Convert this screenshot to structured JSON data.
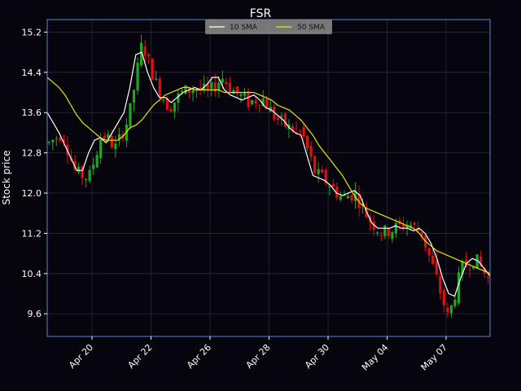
{
  "chart_data": {
    "type": "line",
    "subtype": "candlestick with moving averages",
    "title": "FSR",
    "xlabel": "",
    "ylabel": "Stock price",
    "ylim": [
      9.15,
      15.45
    ],
    "x_tick_labels": [
      "Apr 20",
      "Apr 22",
      "Apr 26",
      "Apr 28",
      "Apr 30",
      "May 04",
      "May 07"
    ],
    "y_ticks": [
      9.6,
      10.4,
      11.2,
      12.0,
      12.8,
      13.6,
      14.4,
      15.2
    ],
    "grid": true,
    "legend_position": "top-center",
    "colors": {
      "background": "#06040d",
      "frame": "#5b86d6",
      "grid": "#2a2a3e",
      "candle_up": "#1fa81f",
      "candle_down": "#e01010",
      "sma10": "#ffffff",
      "sma50": "#e8e800",
      "legend_bg": "#8c8c8c"
    },
    "series": [
      {
        "name": "10 SMA",
        "values": [
          13.6,
          13.4,
          13.2,
          12.95,
          12.7,
          12.45,
          12.45,
          12.8,
          13.05,
          13.1,
          13.0,
          13.2,
          13.4,
          13.6,
          14.1,
          14.75,
          14.8,
          14.4,
          14.1,
          13.9,
          13.9,
          13.8,
          13.9,
          14.0,
          14.05,
          14.1,
          14.05,
          14.15,
          14.3,
          14.3,
          14.05,
          13.95,
          13.9,
          13.85,
          13.9,
          13.95,
          13.85,
          13.7,
          13.65,
          13.55,
          13.45,
          13.3,
          13.2,
          13.15,
          12.75,
          12.35,
          12.3,
          12.25,
          12.15,
          12.0,
          11.95,
          12.0,
          12.05,
          11.95,
          11.65,
          11.4,
          11.3,
          11.3,
          11.3,
          11.35,
          11.3,
          11.3,
          11.25,
          11.3,
          11.2,
          11.0,
          10.7,
          10.3,
          10.0,
          9.95,
          10.3,
          10.6,
          10.7,
          10.65,
          10.5,
          10.35
        ]
      },
      {
        "name": "50 SMA",
        "values": [
          14.3,
          14.2,
          14.1,
          13.95,
          13.75,
          13.55,
          13.4,
          13.3,
          13.2,
          13.1,
          13.05,
          13.05,
          13.05,
          13.15,
          13.3,
          13.35,
          13.45,
          13.6,
          13.75,
          13.85,
          13.95,
          14.0,
          14.05,
          14.1,
          14.1,
          14.05,
          14.05,
          14.05,
          14.05,
          14.05,
          14.0,
          14.0,
          14.0,
          14.0,
          14.0,
          14.0,
          13.95,
          13.9,
          13.85,
          13.75,
          13.7,
          13.65,
          13.55,
          13.45,
          13.3,
          13.15,
          12.95,
          12.8,
          12.65,
          12.5,
          12.35,
          12.15,
          11.95,
          11.8,
          11.7,
          11.65,
          11.6,
          11.55,
          11.5,
          11.45,
          11.4,
          11.35,
          11.3,
          11.2,
          11.05,
          10.95,
          10.85,
          10.8,
          10.75,
          10.7,
          10.65,
          10.6,
          10.55,
          10.5,
          10.45,
          10.4
        ]
      }
    ],
    "candles": {
      "count": 120,
      "trend_anchors": [
        13.0,
        13.2,
        12.4,
        12.3,
        13.2,
        12.9,
        13.5,
        15.0,
        14.2,
        13.7,
        14.0,
        14.1,
        14.0,
        14.3,
        14.0,
        13.8,
        13.9,
        13.5,
        13.3,
        13.2,
        12.4,
        12.2,
        11.9,
        12.0,
        11.5,
        11.2,
        11.3,
        11.4,
        11.2,
        10.4,
        9.5,
        10.5,
        10.7,
        10.3
      ]
    }
  }
}
